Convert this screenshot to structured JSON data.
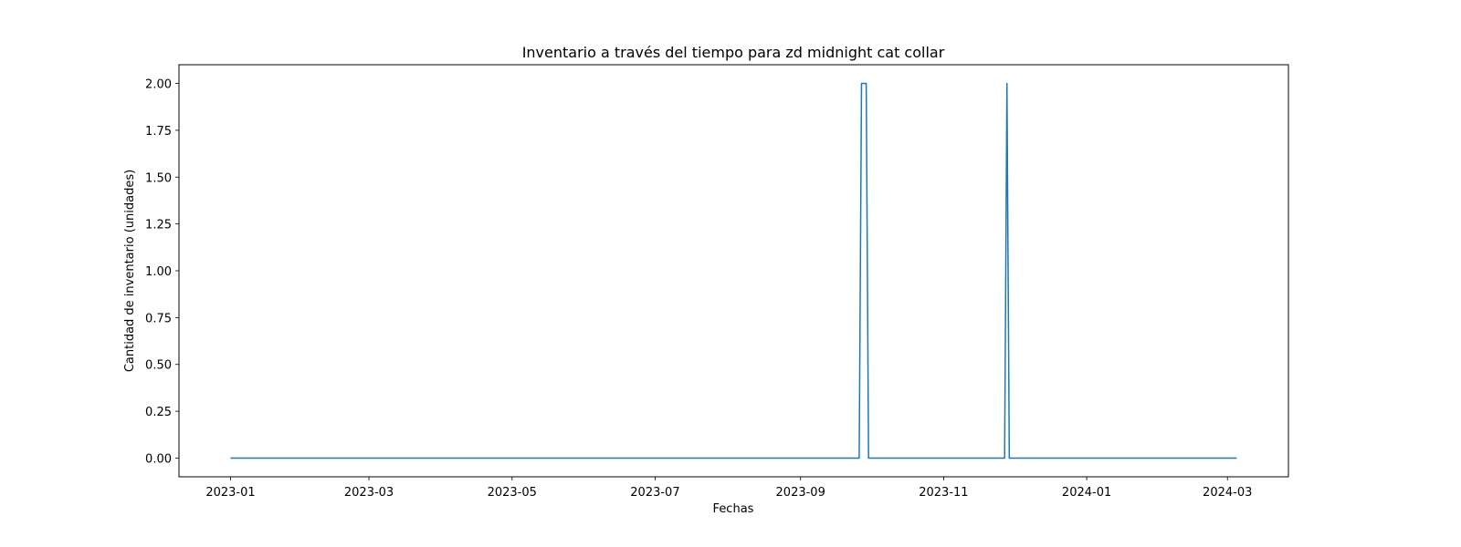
{
  "chart_data": {
    "type": "line",
    "title": "Inventario a través del tiempo para zd midnight cat collar",
    "xlabel": "Fechas",
    "ylabel": "Cantidad de inventario (unidades)",
    "x_type": "date",
    "xlim": [
      "2022-12-10",
      "2024-03-27"
    ],
    "ylim": [
      -0.1,
      2.1
    ],
    "grid": false,
    "xticks": [
      "2023-01-01",
      "2023-03-01",
      "2023-05-01",
      "2023-07-01",
      "2023-09-01",
      "2023-11-01",
      "2024-01-01",
      "2024-03-01"
    ],
    "xtick_labels": [
      "2023-01",
      "2023-03",
      "2023-05",
      "2023-07",
      "2023-09",
      "2023-11",
      "2024-01",
      "2024-03"
    ],
    "yticks": [
      0.0,
      0.25,
      0.5,
      0.75,
      1.0,
      1.25,
      1.5,
      1.75,
      2.0
    ],
    "ytick_labels": [
      "0.00",
      "0.25",
      "0.50",
      "0.75",
      "1.00",
      "1.25",
      "1.50",
      "1.75",
      "2.00"
    ],
    "series": [
      {
        "color": "#1f77b4",
        "points": [
          {
            "x": "2023-01-01",
            "y": 0
          },
          {
            "x": "2023-09-26",
            "y": 0
          },
          {
            "x": "2023-09-27",
            "y": 2
          },
          {
            "x": "2023-09-29",
            "y": 2
          },
          {
            "x": "2023-09-30",
            "y": 0
          },
          {
            "x": "2023-11-27",
            "y": 0
          },
          {
            "x": "2023-11-28",
            "y": 2
          },
          {
            "x": "2023-11-29",
            "y": 0
          },
          {
            "x": "2024-03-05",
            "y": 0
          }
        ]
      }
    ]
  }
}
